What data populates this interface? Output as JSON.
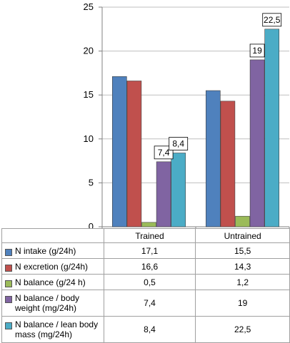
{
  "chart_data": {
    "type": "bar",
    "categories": [
      "Trained",
      "Untrained"
    ],
    "ylim": [
      0,
      25
    ],
    "yticks": [
      0,
      5,
      10,
      15,
      20,
      25
    ],
    "series": [
      {
        "name": "N intake (g/24h)",
        "color": "#4f81bd",
        "values": [
          17.1,
          15.5
        ],
        "display": [
          "17,1",
          "15,5"
        ]
      },
      {
        "name": "N excretion (g/24h)",
        "color": "#c0504d",
        "values": [
          16.6,
          14.3
        ],
        "display": [
          "16,6",
          "14,3"
        ]
      },
      {
        "name": "N balance (g/24 h)",
        "color": "#9bbb59",
        "values": [
          0.5,
          1.2
        ],
        "display": [
          "0,5",
          "1,2"
        ]
      },
      {
        "name": "N balance / body weight (mg/24h)",
        "color": "#8064a2",
        "values": [
          7.4,
          19
        ],
        "display": [
          "7,4",
          "19"
        ]
      },
      {
        "name": "N balance / lean body mass (mg/24h)",
        "color": "#4bacc6",
        "values": [
          8.4,
          22.5
        ],
        "display": [
          "8,4",
          "22,5"
        ]
      }
    ],
    "data_labels": [
      {
        "series": 3,
        "category": 0,
        "text": "7,4"
      },
      {
        "series": 4,
        "category": 0,
        "text": "8,4"
      },
      {
        "series": 3,
        "category": 1,
        "text": "19"
      },
      {
        "series": 4,
        "category": 1,
        "text": "22,5"
      }
    ],
    "legend": "data-table"
  }
}
